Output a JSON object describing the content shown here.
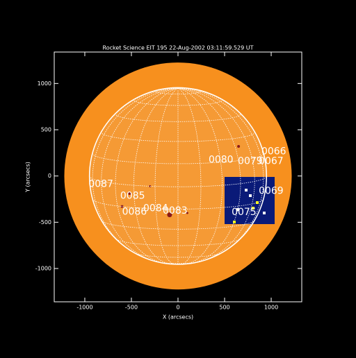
{
  "chart_data": {
    "type": "solar-image",
    "title": "Rocket Science EIT 195 22-Aug-2002 03:11:59.529 UT",
    "xlabel": "X (arcsecs)",
    "ylabel": "Y (arcsecs)",
    "xlim": [
      -1328,
      1328
    ],
    "ylim": [
      -1360,
      1340
    ],
    "xticks": [
      -1000,
      -500,
      0,
      500,
      1000
    ],
    "yticks": [
      -1000,
      -500,
      0,
      500,
      1000
    ],
    "disk_radius": 950,
    "corona_radius": 1220,
    "regions": [
      {
        "label": "0087",
        "x": -960,
        "y": -90
      },
      {
        "label": "0085",
        "x": -620,
        "y": -218
      },
      {
        "label": "0086",
        "x": -600,
        "y": -390
      },
      {
        "label": "0084",
        "x": -373,
        "y": -353
      },
      {
        "label": "0083",
        "x": -164,
        "y": -376
      },
      {
        "label": "0080",
        "x": 328,
        "y": 173
      },
      {
        "label": "0079",
        "x": 642,
        "y": 158
      },
      {
        "label": "0066",
        "x": 895,
        "y": 263
      },
      {
        "label": "0067",
        "x": 866,
        "y": 158
      },
      {
        "label": "0069",
        "x": 866,
        "y": -165
      },
      {
        "label": "0075",
        "x": 575,
        "y": -391
      }
    ]
  }
}
